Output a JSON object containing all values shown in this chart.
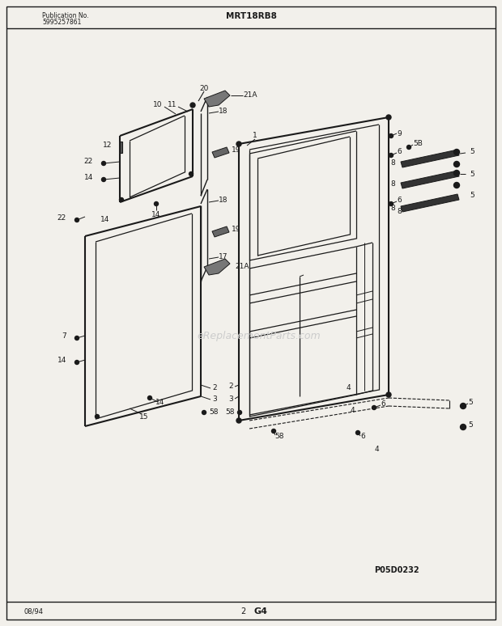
{
  "bg_color": "#f2f0eb",
  "dark": "#1a1a1a",
  "title": "MRT18RB8",
  "pub_label": "Publication No.",
  "pub_num": "5995257861",
  "diagram_code": "P05D0232",
  "page_num": "2",
  "page_code": "G4",
  "date": "08/94",
  "watermark": "eReplacementParts.com",
  "fig_width": 6.2,
  "fig_height": 7.74,
  "dpi": 100
}
